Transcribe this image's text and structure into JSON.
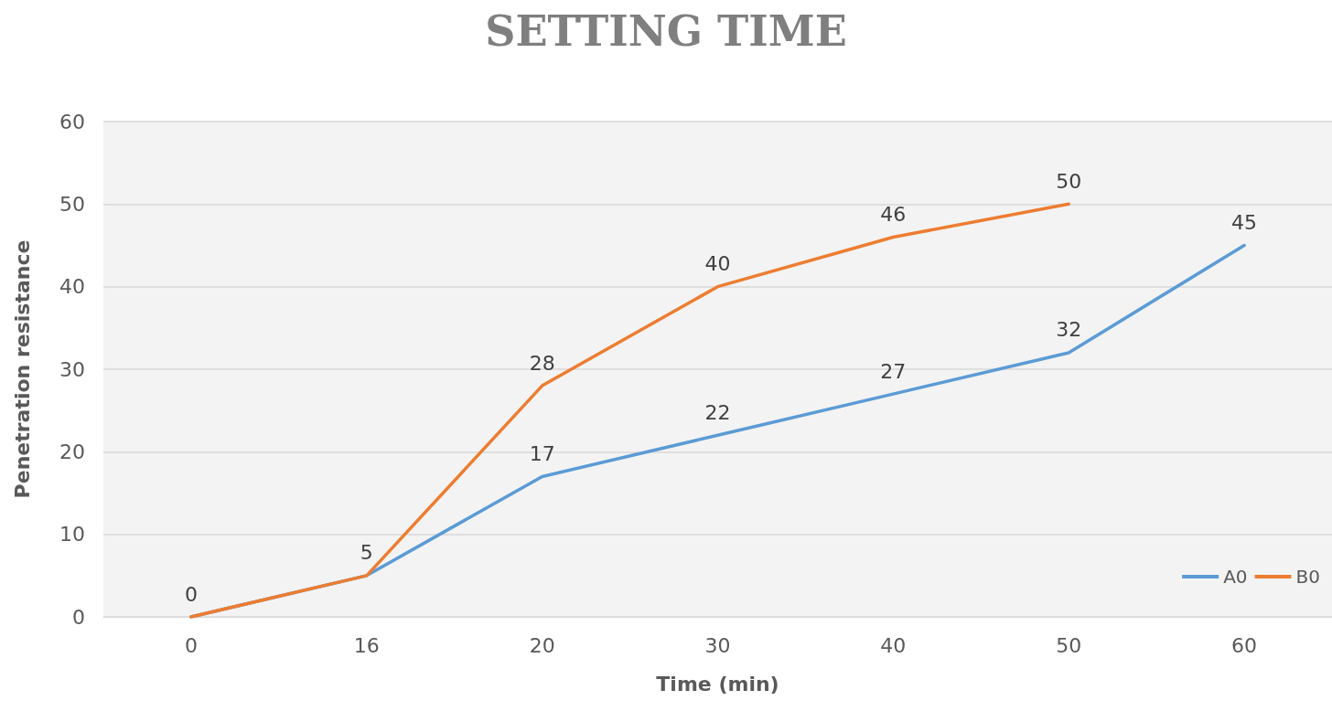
{
  "chart_data": {
    "type": "line",
    "title": "SETTING TIME",
    "xlabel": "Time (min)",
    "ylabel": "Penetration resistance",
    "categories": [
      "0",
      "16",
      "20",
      "30",
      "40",
      "50",
      "60"
    ],
    "series": [
      {
        "name": "A0",
        "color": "#5b9bd5",
        "values": [
          0,
          5,
          17,
          22,
          27,
          32,
          45
        ],
        "value_labels": [
          "0",
          "5",
          "17",
          "22",
          "27",
          "32",
          "45"
        ]
      },
      {
        "name": "B0",
        "color": "#ed7d31",
        "values": [
          0,
          5,
          28,
          40,
          46,
          50,
          null
        ],
        "value_labels": [
          null,
          null,
          "28",
          "40",
          "46",
          "50",
          null
        ]
      }
    ],
    "ylim": [
      0,
      60
    ],
    "yticks": [
      0,
      10,
      20,
      30,
      40,
      50,
      60
    ],
    "grid": "y",
    "legend": "bottom right",
    "marker": "none",
    "line_style": "solid"
  }
}
